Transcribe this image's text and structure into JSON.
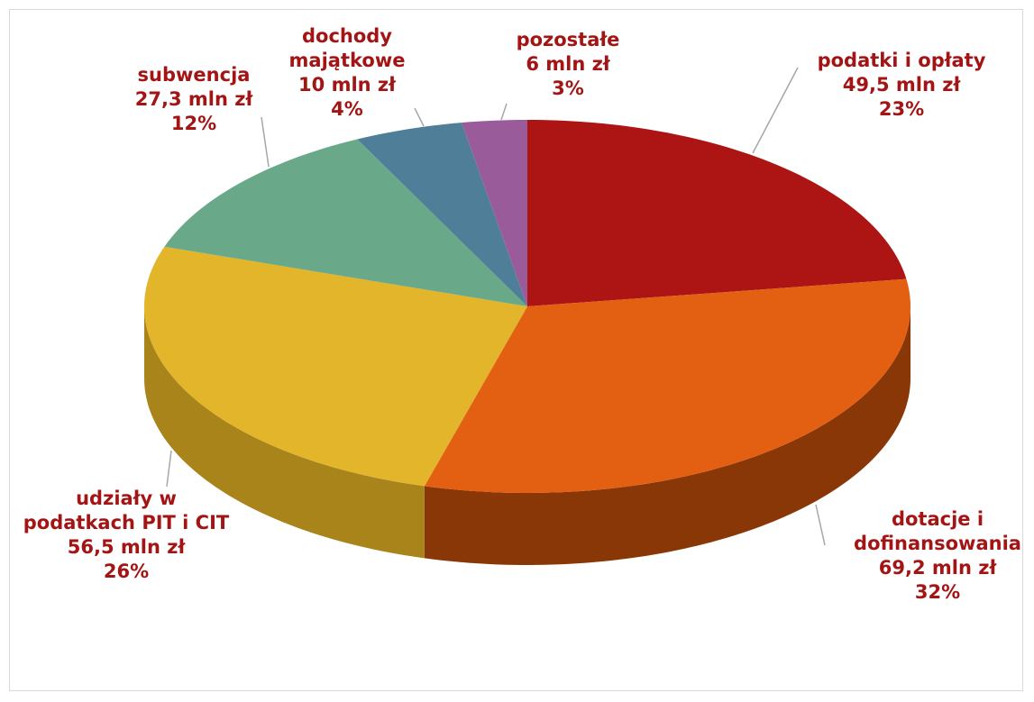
{
  "chart_data": {
    "type": "pie",
    "categories": [
      "podatki i opłaty",
      "dotacje i dofinansowania",
      "udziały w podatkach PIT i CIT",
      "subwencja",
      "dochody majątkowe",
      "pozostałe"
    ],
    "values": [
      49.5,
      69.2,
      56.5,
      27.3,
      10,
      6
    ],
    "value_labels": [
      "49,5 mln zł",
      "69,2 mln zł",
      "56,5 mln zł",
      "27,3 mln zł",
      "10 mln zł",
      "6 mln zł"
    ],
    "percent_labels": [
      "23%",
      "32%",
      "26%",
      "12%",
      "4%",
      "3%"
    ],
    "colors": [
      "#ad1414",
      "#e35f12",
      "#e2b52a",
      "#69a98a",
      "#4f7f98",
      "#9a5b9a"
    ],
    "side_colors": [
      "#6e0c0c",
      "#8a3708",
      "#a8841b",
      "#497a63",
      "#355a6c",
      "#6c3d6c"
    ]
  }
}
